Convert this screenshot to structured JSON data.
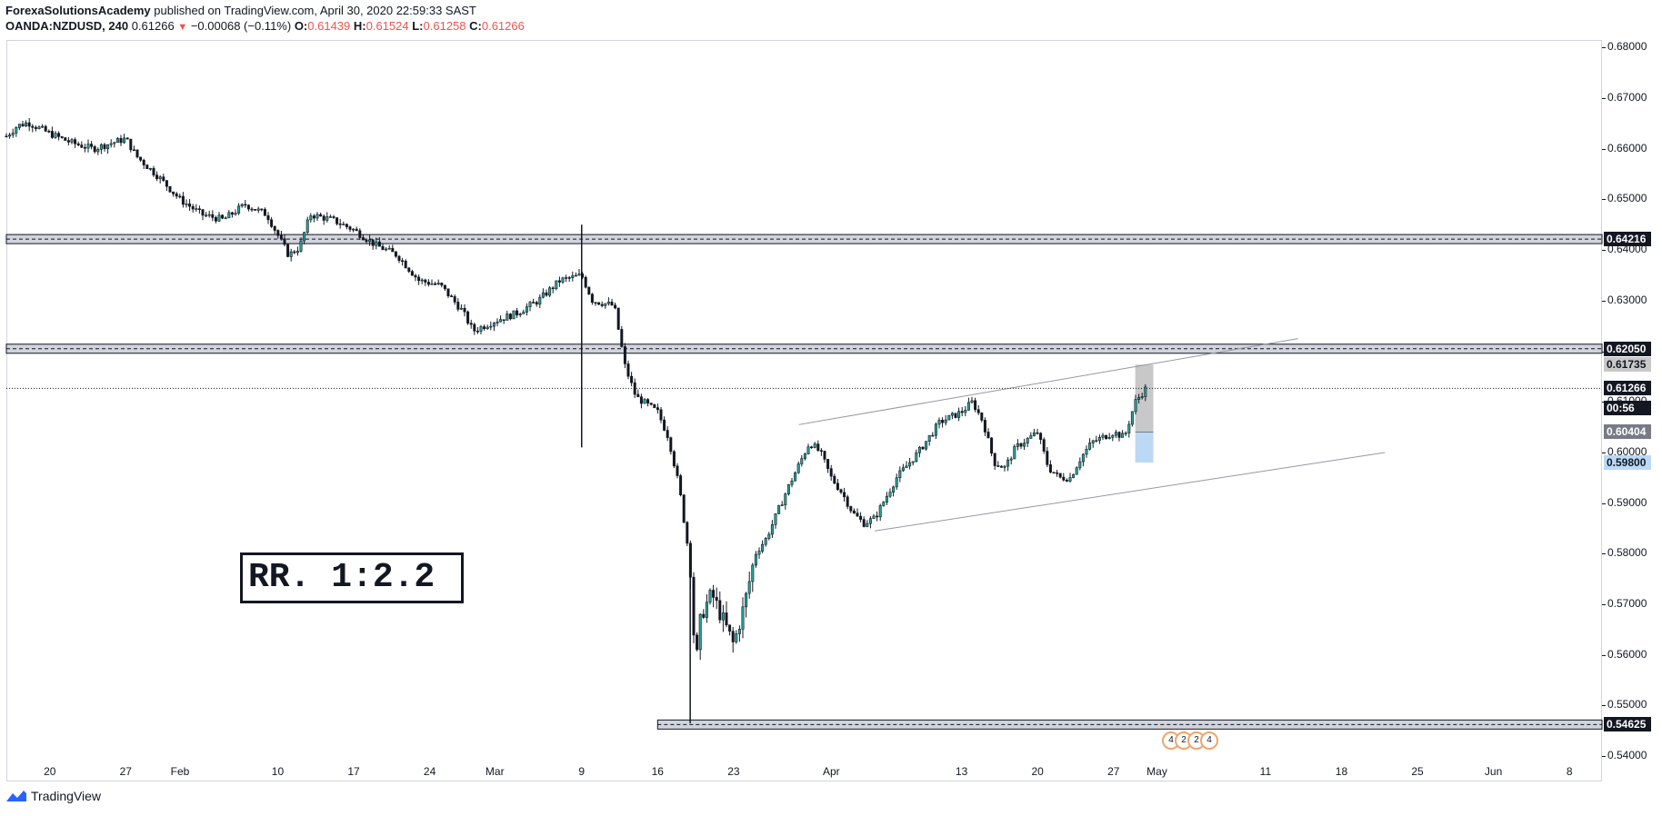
{
  "header": {
    "author": "ForexaSolutionsAcademy",
    "published": " published on TradingView.com, April 30, 2020 22:59:33 SAST",
    "symbol": "OANDA:NZDUSD, 240",
    "last": "0.61266",
    "change": "−0.00068 (−0.11%)",
    "o_label": "O:",
    "o": "0.61439",
    "h_label": "H:",
    "h": "0.61524",
    "l_label": "L:",
    "l": "0.61258",
    "c_label": "C:",
    "c": "0.61266"
  },
  "annotation": {
    "rr_text": "RR. 1:2.2"
  },
  "price_axis": {
    "ticks": [
      "0.68000",
      "0.67000",
      "0.66000",
      "0.65000",
      "0.64000",
      "0.63000",
      "0.62000",
      "0.61000",
      "0.60000",
      "0.59000",
      "0.58000",
      "0.57000",
      "0.56000",
      "0.55000",
      "0.54000"
    ],
    "tick_values": [
      0.68,
      0.67,
      0.66,
      0.65,
      0.64,
      0.63,
      0.62,
      0.61,
      0.6,
      0.59,
      0.58,
      0.57,
      0.56,
      0.55,
      0.54
    ],
    "labels": [
      {
        "text": "0.64216",
        "value": 0.64216,
        "bg": "#131722",
        "fg": "#ffffff"
      },
      {
        "text": "0.62050",
        "value": 0.6205,
        "bg": "#131722",
        "fg": "#ffffff"
      },
      {
        "text": "0.61735",
        "value": 0.61735,
        "bg": "#c8c8c8",
        "fg": "#131722"
      },
      {
        "text": "0.61266",
        "value": 0.61266,
        "bg": "#131722",
        "fg": "#ffffff"
      },
      {
        "text": "00:56",
        "value": 0.6088,
        "bg": "#131722",
        "fg": "#ffffff"
      },
      {
        "text": "0.60404",
        "value": 0.60404,
        "bg": "#787b86",
        "fg": "#ffffff"
      },
      {
        "text": "0.59800",
        "value": 0.598,
        "bg": "#bbd9f5",
        "fg": "#131722"
      },
      {
        "text": "0.54625",
        "value": 0.54625,
        "bg": "#131722",
        "fg": "#ffffff"
      }
    ]
  },
  "time_axis": {
    "labels": [
      "20",
      "27",
      "Feb",
      "10",
      "17",
      "24",
      "Mar",
      "9",
      "16",
      "23",
      "Apr",
      "13",
      "20",
      "27",
      "May",
      "11",
      "18",
      "25",
      "Jun",
      "8"
    ]
  },
  "footer": {
    "brand": "TradingView"
  },
  "events": {
    "labels": [
      "4",
      "2",
      "2",
      "4"
    ]
  },
  "colors": {
    "candle": "#131722",
    "up_body": "#26a69a",
    "zone_fill": "#d1d4dc",
    "risk_fill": "#c8c8c8",
    "reward_fill": "#bbd9f5",
    "channel_line": "#9598a1"
  },
  "chart_data": {
    "type": "candlestick",
    "title": "OANDA:NZDUSD, 240",
    "xlabel": "",
    "ylabel": "",
    "ylim": [
      0.535,
      0.6815
    ],
    "x_range": [
      "2020-01-16",
      "2020-06-11"
    ],
    "grid": false,
    "price_path": [
      [
        "2020-01-16",
        0.6625
      ],
      [
        "2020-01-17",
        0.6645
      ],
      [
        "2020-01-18",
        0.6652
      ],
      [
        "2020-01-20",
        0.663
      ],
      [
        "2020-01-22",
        0.6612
      ],
      [
        "2020-01-24",
        0.66
      ],
      [
        "2020-01-27",
        0.662
      ],
      [
        "2020-01-28",
        0.6585
      ],
      [
        "2020-01-30",
        0.6545
      ],
      [
        "2020-02-01",
        0.65
      ],
      [
        "2020-02-03",
        0.647
      ],
      [
        "2020-02-05",
        0.646
      ],
      [
        "2020-02-07",
        0.649
      ],
      [
        "2020-02-09",
        0.647
      ],
      [
        "2020-02-11",
        0.639
      ],
      [
        "2020-02-12",
        0.6405
      ],
      [
        "2020-02-13",
        0.647
      ],
      [
        "2020-02-15",
        0.646
      ],
      [
        "2020-02-17",
        0.644
      ],
      [
        "2020-02-19",
        0.641
      ],
      [
        "2020-02-21",
        0.639
      ],
      [
        "2020-02-23",
        0.634
      ],
      [
        "2020-02-25",
        0.633
      ],
      [
        "2020-02-27",
        0.628
      ],
      [
        "2020-02-28",
        0.624
      ],
      [
        "2020-03-01",
        0.626
      ],
      [
        "2020-03-03",
        0.6275
      ],
      [
        "2020-03-05",
        0.63
      ],
      [
        "2020-03-07",
        0.634
      ],
      [
        "2020-03-09",
        0.635
      ],
      [
        "2020-03-10",
        0.63
      ],
      [
        "2020-03-12",
        0.629
      ],
      [
        "2020-03-13",
        0.617
      ],
      [
        "2020-03-14",
        0.611
      ],
      [
        "2020-03-16",
        0.608
      ],
      [
        "2020-03-17",
        0.603
      ],
      [
        "2020-03-18",
        0.593
      ],
      [
        "2020-03-19",
        0.578
      ],
      [
        "2020-03-19T12:00",
        0.557
      ],
      [
        "2020-03-20",
        0.568
      ],
      [
        "2020-03-21",
        0.572
      ],
      [
        "2020-03-23",
        0.562
      ],
      [
        "2020-03-24",
        0.57
      ],
      [
        "2020-03-25",
        0.58
      ],
      [
        "2020-03-26",
        0.583
      ],
      [
        "2020-03-27",
        0.588
      ],
      [
        "2020-03-28",
        0.593
      ],
      [
        "2020-03-30",
        0.602
      ],
      [
        "2020-03-31",
        0.6
      ],
      [
        "2020-04-01",
        0.595
      ],
      [
        "2020-04-02",
        0.592
      ],
      [
        "2020-04-03",
        0.588
      ],
      [
        "2020-04-04",
        0.586
      ],
      [
        "2020-04-05",
        0.587
      ],
      [
        "2020-04-07",
        0.595
      ],
      [
        "2020-04-09",
        0.6
      ],
      [
        "2020-04-10",
        0.603
      ],
      [
        "2020-04-11",
        0.606
      ],
      [
        "2020-04-13",
        0.608
      ],
      [
        "2020-04-14",
        0.61
      ],
      [
        "2020-04-15",
        0.606
      ],
      [
        "2020-04-16",
        0.598
      ],
      [
        "2020-04-17",
        0.597
      ],
      [
        "2020-04-18",
        0.601
      ],
      [
        "2020-04-20",
        0.604
      ],
      [
        "2020-04-21",
        0.597
      ],
      [
        "2020-04-22",
        0.595
      ],
      [
        "2020-04-23",
        0.595
      ],
      [
        "2020-04-24",
        0.599
      ],
      [
        "2020-04-25",
        0.602
      ],
      [
        "2020-04-27",
        0.604
      ],
      [
        "2020-04-28",
        0.603
      ],
      [
        "2020-04-29",
        0.61
      ],
      [
        "2020-04-30",
        0.6127
      ]
    ],
    "extreme_wicks": [
      {
        "date": "2020-03-09",
        "high": 0.645,
        "low": 0.601
      },
      {
        "date": "2020-03-19",
        "low": 0.5465
      }
    ],
    "support_resistance_zones": [
      {
        "price": 0.64216,
        "from": "2020-01-16"
      },
      {
        "price": 0.6205,
        "from": "2020-01-16"
      },
      {
        "price": 0.54625,
        "from": "2020-03-16"
      }
    ],
    "channel_lines": [
      {
        "from": [
          "2020-03-29",
          0.6055
        ],
        "to": [
          "2020-05-14",
          0.6225
        ]
      },
      {
        "from": [
          "2020-04-05",
          0.5845
        ],
        "to": [
          "2020-05-22",
          0.6
        ]
      }
    ],
    "position_tool": {
      "start": "2020-04-29",
      "end": "2020-04-30",
      "entry": 0.60404,
      "stop": 0.598,
      "target": 0.61735
    },
    "last_price": 0.61266
  }
}
